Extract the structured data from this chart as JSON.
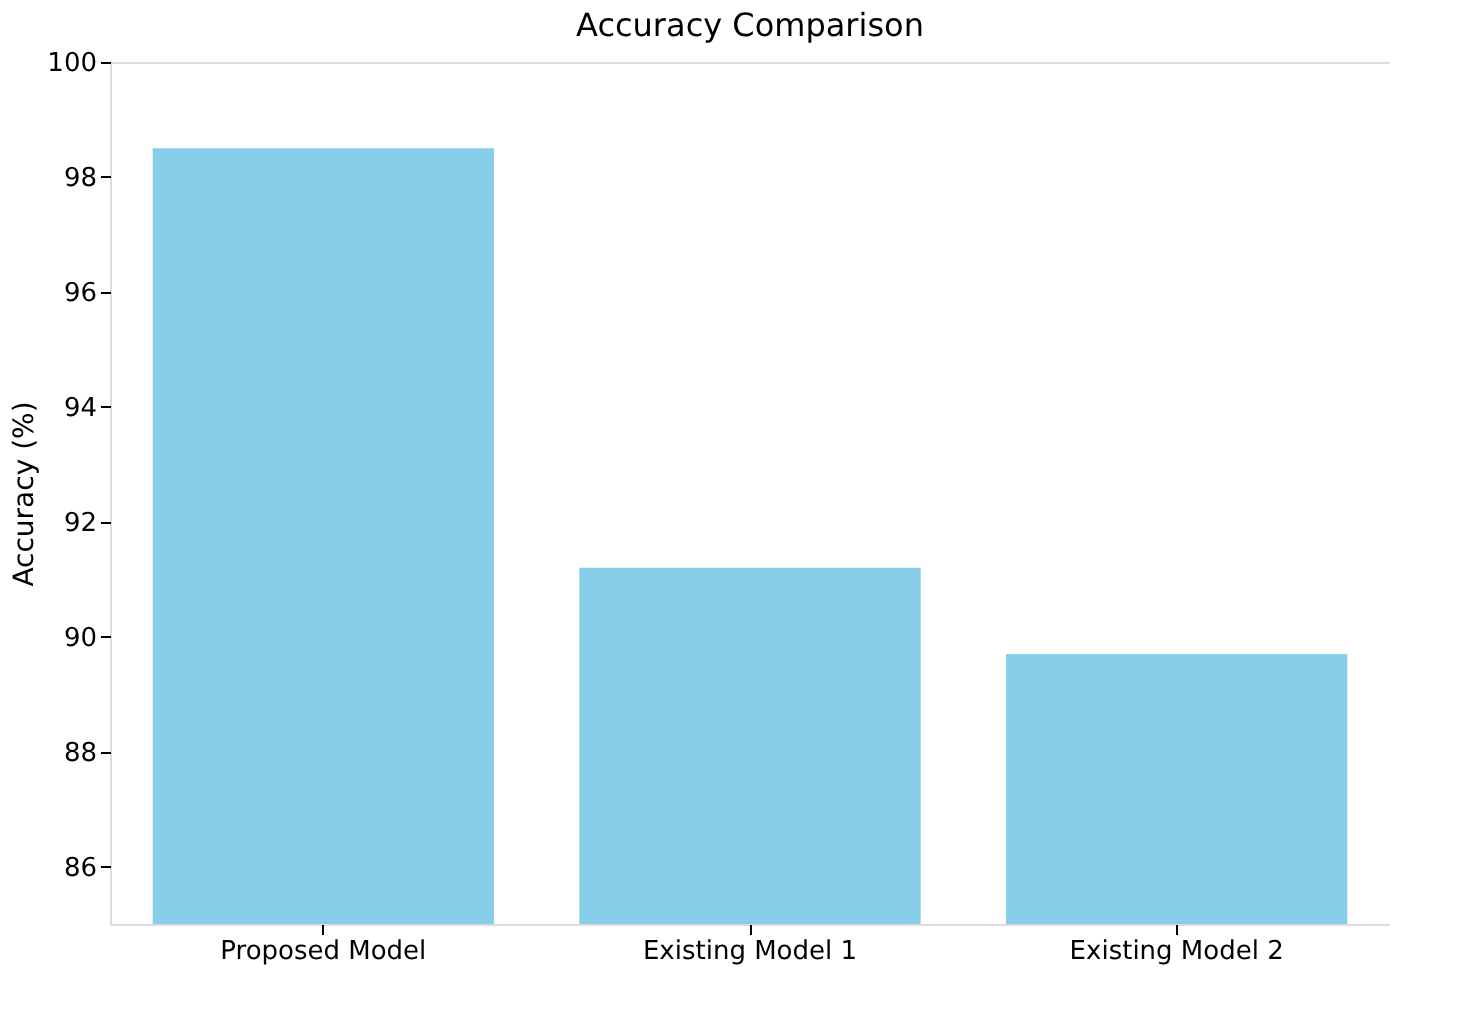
{
  "chart_data": {
    "type": "bar",
    "title": "Accuracy Comparison",
    "ylabel": "Accuracy (%)",
    "categories": [
      "Proposed Model",
      "Existing Model 1",
      "Existing Model 2"
    ],
    "values": [
      98.5,
      91.2,
      89.7
    ],
    "color": "#87ceeb",
    "ylim": [
      85,
      100
    ],
    "yticks": [
      86,
      88,
      90,
      92,
      94,
      96,
      98,
      100
    ],
    "grid": false
  }
}
